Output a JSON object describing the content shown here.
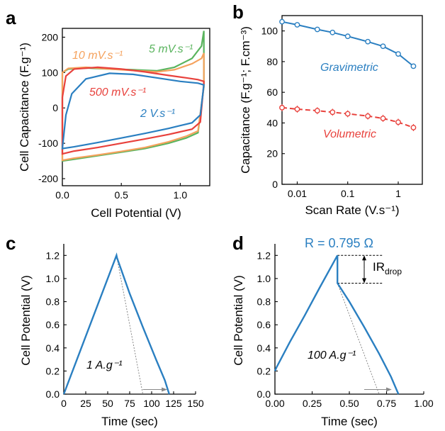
{
  "panels": {
    "a": {
      "label": "a"
    },
    "b": {
      "label": "b"
    },
    "c": {
      "label": "c"
    },
    "d": {
      "label": "d"
    }
  },
  "colors": {
    "blue": "#2a7fc1",
    "red": "#e8413c",
    "orange": "#f5a25d",
    "green": "#5ab45e",
    "salmon": "#f07b6a",
    "gray": "#777777"
  },
  "chart_data": [
    {
      "panel": "a",
      "type": "line",
      "xlabel": "Cell Potential (V)",
      "ylabel": "Cell Capacitance (F.g⁻¹)",
      "xlim": [
        0,
        1.25
      ],
      "ylim": [
        -220,
        225
      ],
      "xticks": [
        "0.0",
        "0.5",
        "1.0"
      ],
      "xtick_values": [
        0,
        0.5,
        1.0
      ],
      "yticks": [
        "-200",
        "-100",
        "0",
        "100",
        "200"
      ],
      "ytick_values": [
        -200,
        -100,
        0,
        100,
        200
      ],
      "annotations": [
        "10 mV.s⁻¹",
        "5 mV.s⁻¹",
        "500 mV.s⁻¹",
        "2 V.s⁻¹"
      ],
      "series": [
        {
          "name": "5 mV.s⁻¹",
          "color": "green",
          "upper": [
            [
              0,
              100
            ],
            [
              0.05,
              110
            ],
            [
              0.2,
              113
            ],
            [
              0.4,
              110
            ],
            [
              0.6,
              108
            ],
            [
              0.8,
              105
            ],
            [
              0.95,
              115
            ],
            [
              1.1,
              140
            ],
            [
              1.18,
              175
            ],
            [
              1.2,
              218
            ]
          ],
          "lower": [
            [
              1.2,
              60
            ],
            [
              1.15,
              -70
            ],
            [
              1.05,
              -85
            ],
            [
              0.9,
              -100
            ],
            [
              0.7,
              -115
            ],
            [
              0.5,
              -125
            ],
            [
              0.3,
              -135
            ],
            [
              0.1,
              -145
            ],
            [
              0,
              -150
            ]
          ]
        },
        {
          "name": "10 mV.s⁻¹",
          "color": "orange",
          "upper": [
            [
              0,
              100
            ],
            [
              0.05,
              112
            ],
            [
              0.2,
              115
            ],
            [
              0.4,
              110
            ],
            [
              0.6,
              106
            ],
            [
              0.8,
              102
            ],
            [
              0.95,
              108
            ],
            [
              1.1,
              125
            ],
            [
              1.18,
              140
            ],
            [
              1.2,
              155
            ]
          ],
          "lower": [
            [
              1.2,
              60
            ],
            [
              1.15,
              -65
            ],
            [
              1.05,
              -80
            ],
            [
              0.9,
              -96
            ],
            [
              0.7,
              -112
            ],
            [
              0.5,
              -123
            ],
            [
              0.3,
              -133
            ],
            [
              0.1,
              -142
            ],
            [
              0,
              -148
            ]
          ]
        },
        {
          "name": "500 mV.s⁻¹",
          "color": "red",
          "upper": [
            [
              0,
              30
            ],
            [
              0.03,
              90
            ],
            [
              0.1,
              110
            ],
            [
              0.3,
              115
            ],
            [
              0.5,
              110
            ],
            [
              0.7,
              102
            ],
            [
              0.9,
              92
            ],
            [
              1.05,
              85
            ],
            [
              1.15,
              80
            ],
            [
              1.2,
              75
            ]
          ],
          "lower": [
            [
              1.2,
              70
            ],
            [
              1.17,
              -40
            ],
            [
              1.1,
              -60
            ],
            [
              0.9,
              -75
            ],
            [
              0.7,
              -88
            ],
            [
              0.5,
              -100
            ],
            [
              0.3,
              -112
            ],
            [
              0.1,
              -122
            ],
            [
              0,
              -130
            ]
          ]
        },
        {
          "name": "2 V.s⁻¹",
          "color": "blue",
          "upper": [
            [
              0,
              -115
            ],
            [
              0.03,
              -20
            ],
            [
              0.08,
              40
            ],
            [
              0.2,
              82
            ],
            [
              0.4,
              98
            ],
            [
              0.6,
              95
            ],
            [
              0.8,
              85
            ],
            [
              1.0,
              75
            ],
            [
              1.15,
              70
            ],
            [
              1.2,
              65
            ]
          ],
          "lower": [
            [
              1.2,
              65
            ],
            [
              1.17,
              -20
            ],
            [
              1.1,
              -42
            ],
            [
              0.9,
              -58
            ],
            [
              0.7,
              -72
            ],
            [
              0.5,
              -85
            ],
            [
              0.3,
              -98
            ],
            [
              0.1,
              -110
            ],
            [
              0,
              -115
            ]
          ]
        }
      ]
    },
    {
      "panel": "b",
      "type": "line",
      "xlabel": "Scan Rate (V.s⁻¹)",
      "ylabel": "Capacitance (F.g⁻¹; F.cm⁻³)",
      "xscale": "log",
      "xlim": [
        0.005,
        3
      ],
      "ylim": [
        0,
        110
      ],
      "xticks": [
        "0.01",
        "0.1",
        "1"
      ],
      "xtick_values": [
        0.01,
        0.1,
        1
      ],
      "yticks": [
        "0",
        "20",
        "40",
        "60",
        "80",
        "100"
      ],
      "ytick_values": [
        0,
        20,
        40,
        60,
        80,
        100
      ],
      "annotations": [
        "Gravimetric",
        "Volumetric"
      ],
      "series": [
        {
          "name": "Gravimetric",
          "color": "blue",
          "style": "solid",
          "x": [
            0.005,
            0.01,
            0.025,
            0.05,
            0.1,
            0.25,
            0.5,
            1,
            2
          ],
          "y": [
            106,
            104,
            101,
            99,
            96.5,
            93,
            90,
            85,
            77
          ]
        },
        {
          "name": "Volumetric",
          "color": "red",
          "style": "dashed",
          "x": [
            0.005,
            0.01,
            0.025,
            0.05,
            0.1,
            0.25,
            0.5,
            1,
            2
          ],
          "y": [
            50,
            49,
            48,
            47,
            46,
            44.5,
            43,
            40.5,
            37
          ]
        }
      ]
    },
    {
      "panel": "c",
      "type": "line",
      "xlabel": "Time (sec)",
      "ylabel": "Cell Potential (V)",
      "xlim": [
        0,
        150
      ],
      "ylim": [
        0,
        1.3
      ],
      "xticks": [
        "0",
        "25",
        "50",
        "75",
        "100",
        "125",
        "150"
      ],
      "xtick_values": [
        0,
        25,
        50,
        75,
        100,
        125,
        150
      ],
      "yticks": [
        "0.0",
        "0.2",
        "0.4",
        "0.6",
        "0.8",
        "1.0",
        "1.2"
      ],
      "ytick_values": [
        0,
        0.2,
        0.4,
        0.6,
        0.8,
        1.0,
        1.2
      ],
      "annotations": [
        "1 A.g⁻¹"
      ],
      "series": [
        {
          "name": "",
          "color": "blue",
          "x": [
            0,
            60,
            60.6,
            75,
            90,
            105,
            115,
            120
          ],
          "y": [
            0,
            1.2,
            1.18,
            0.87,
            0.58,
            0.3,
            0.12,
            0
          ]
        }
      ],
      "guide": {
        "from": [
          60,
          1.2
        ],
        "to": [
          90,
          0
        ]
      }
    },
    {
      "panel": "d",
      "type": "line",
      "xlabel": "Time (sec)",
      "ylabel": "Cell Potential (V)",
      "xlim": [
        0,
        1.0
      ],
      "ylim": [
        0,
        1.3
      ],
      "xticks": [
        "0.00",
        "0.25",
        "0.50",
        "0.75",
        "1.00"
      ],
      "xtick_values": [
        0,
        0.25,
        0.5,
        0.75,
        1.0
      ],
      "yticks": [
        "0.0",
        "0.2",
        "0.4",
        "0.6",
        "0.8",
        "1.0",
        "1.2"
      ],
      "ytick_values": [
        0,
        0.2,
        0.4,
        0.6,
        0.8,
        1.0,
        1.2
      ],
      "annotations": [
        "100 A.g⁻¹",
        "R = 0.795 Ω"
      ],
      "ir_label": {
        "main": "IR",
        "sub": "drop"
      },
      "ir_drop": {
        "top": 1.2,
        "bottom": 0.96
      },
      "series": [
        {
          "name": "",
          "color": "blue",
          "x": [
            0,
            0.01,
            0.1,
            0.2,
            0.3,
            0.42,
            0.42,
            0.5,
            0.6,
            0.7,
            0.78,
            0.83
          ],
          "y": [
            0.2,
            0.23,
            0.45,
            0.68,
            0.92,
            1.2,
            0.96,
            0.8,
            0.58,
            0.35,
            0.15,
            0
          ]
        }
      ],
      "guide": {
        "from": [
          0.42,
          0.96
        ],
        "to": [
          0.7,
          0
        ]
      }
    }
  ]
}
